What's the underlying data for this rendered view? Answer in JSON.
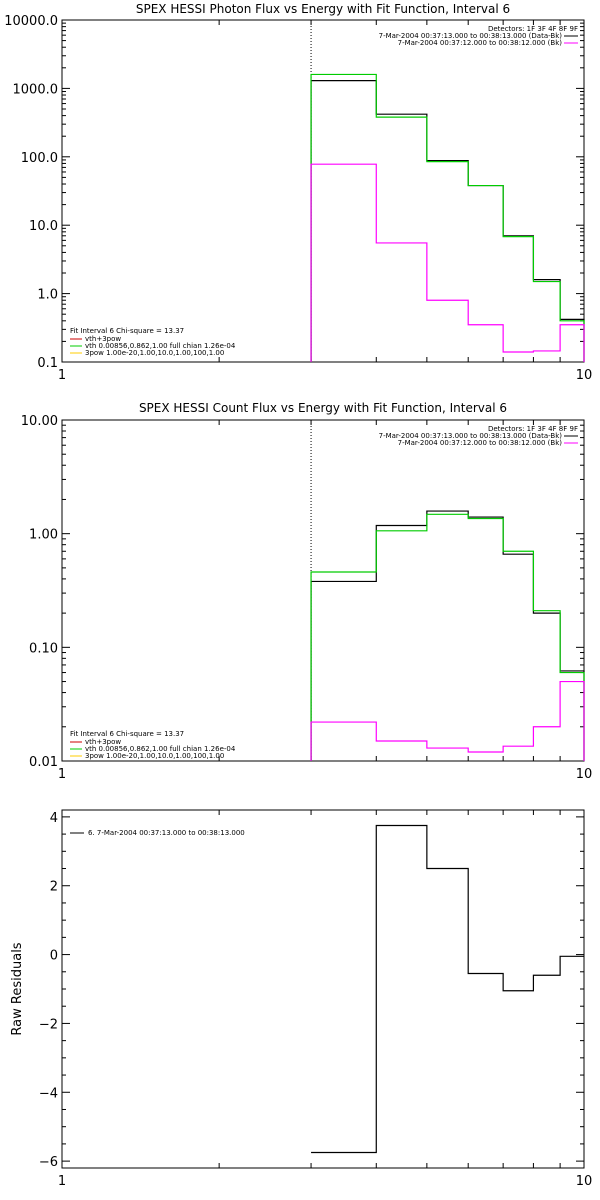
{
  "chart_data": [
    {
      "type": "line",
      "title": "SPEX HESSI Photon Flux vs Energy with Fit Function, Interval 6",
      "xlabel": "",
      "ylabel": "",
      "x_scale": "log",
      "y_scale": "log",
      "xlim": [
        1,
        10
      ],
      "ylim": [
        0.1,
        10000
      ],
      "x_ticks": [
        "1",
        "10"
      ],
      "y_ticks": [
        "0.1",
        "1.0",
        "10.0",
        "100.0",
        "1000.0",
        "10000.0"
      ],
      "y_tick_values": [
        0.1,
        1,
        10,
        100,
        1000,
        10000
      ],
      "vline_x": 3,
      "bin_edges": [
        3,
        4,
        5,
        6,
        7,
        8,
        9,
        10
      ],
      "legend_tr": {
        "detectors": "Detectors: 1F 3F 4F 8F 9F",
        "line1": "7-Mar-2004 00:37:13.000 to 00:38:13.000 (Data-Bk)",
        "line2": "7-Mar-2004 00:37:12.000 to 00:38:12.000 (Bk)"
      },
      "legend_bl": {
        "header": "Fit Interval  6    Chi-square = 13.37",
        "items": [
          "vth+3pow",
          "vth 0.00856,0.862,1.00   full chian 1.26e-04",
          "3pow 1.00e-20,1.00,10.0,1.00,100,1.00"
        ]
      },
      "colors": {
        "data": "#000000",
        "bk": "#ff00ff",
        "vth": "#00cc00",
        "pow": "#ffcc00",
        "fit_label": "#cc0000"
      },
      "series": [
        {
          "values": [
            1300,
            420,
            88,
            38,
            7,
            1.6,
            0.42
          ],
          "color": "#000000"
        },
        {
          "values": [
            1600,
            380,
            85,
            38,
            6.8,
            1.5,
            0.4
          ],
          "color": "#00cc00"
        },
        {
          "values": [
            78,
            5.5,
            0.8,
            0.35,
            0.14,
            0.145,
            0.35
          ],
          "color": "#ff00ff"
        }
      ]
    },
    {
      "type": "line",
      "title": "SPEX HESSI Count Flux vs Energy with Fit Function, Interval 6",
      "xlabel": "",
      "ylabel": "",
      "x_scale": "log",
      "y_scale": "log",
      "xlim": [
        1,
        10
      ],
      "ylim": [
        0.01,
        10
      ],
      "x_ticks": [
        "1",
        "10"
      ],
      "y_ticks": [
        "0.01",
        "0.10",
        "1.00",
        "10.00"
      ],
      "y_tick_values": [
        0.01,
        0.1,
        1,
        10
      ],
      "vline_x": 3,
      "bin_edges": [
        3,
        4,
        5,
        6,
        7,
        8,
        9,
        10
      ],
      "legend_tr": {
        "detectors": "Detectors: 1F 3F 4F 8F 9F",
        "line1": "7-Mar-2004 00:37:13.000 to 00:38:13.000 (Data-Bk)",
        "line2": "7-Mar-2004 00:37:12.000 to 00:38:12.000 (Bk)"
      },
      "legend_bl": {
        "header": "Fit Interval  6    Chi-square = 13.37",
        "items": [
          "vth+3pow",
          "vth 0.00856,0.862,1.00   full chian 1.26e-04",
          "3pow 1.00e-20,1.00,10.0,1.00,100,1.00"
        ]
      },
      "series": [
        {
          "values": [
            0.38,
            1.18,
            1.58,
            1.4,
            0.66,
            0.2,
            0.062
          ],
          "color": "#000000"
        },
        {
          "values": [
            0.46,
            1.06,
            1.48,
            1.36,
            0.7,
            0.21,
            0.06
          ],
          "color": "#00cc00"
        },
        {
          "values": [
            0.022,
            0.015,
            0.013,
            0.012,
            0.0135,
            0.02,
            0.05
          ],
          "color": "#ff00ff"
        }
      ]
    },
    {
      "type": "line",
      "title": "",
      "xlabel": "",
      "ylabel": "Raw Residuals",
      "x_scale": "log",
      "y_scale": "linear",
      "xlim": [
        1,
        10
      ],
      "ylim": [
        -6.2,
        4.2
      ],
      "x_ticks": [
        "1",
        "10"
      ],
      "y_ticks": [
        "4",
        "2",
        "0",
        "−2",
        "−4",
        "−6"
      ],
      "y_tick_values": [
        4,
        2,
        0,
        -2,
        -4,
        -6
      ],
      "bin_edges": [
        3,
        4,
        5,
        6,
        7,
        8,
        9,
        10
      ],
      "legend": "6.  7-Mar-2004 00:37:13.000 to 00:38:13.000",
      "series": [
        {
          "values": [
            -5.75,
            3.75,
            2.5,
            -0.55,
            -1.05,
            -0.6,
            -0.05
          ],
          "color": "#000000"
        }
      ]
    }
  ]
}
